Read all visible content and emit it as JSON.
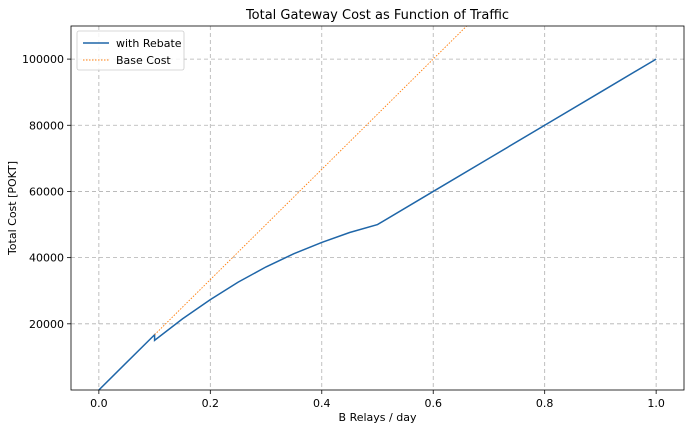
{
  "chart_data": {
    "type": "line",
    "title": "Total Gateway Cost as Function of Traffic",
    "xlabel": "B Relays / day",
    "ylabel": "Total Cost [POKT]",
    "xlim": [
      -0.05,
      1.05
    ],
    "ylim": [
      0,
      110000
    ],
    "xticks": [
      0.0,
      0.2,
      0.4,
      0.6,
      0.8,
      1.0
    ],
    "xtick_labels": [
      "0.0",
      "0.2",
      "0.4",
      "0.6",
      "0.8",
      "1.0"
    ],
    "yticks": [
      20000,
      40000,
      60000,
      80000,
      100000
    ],
    "ytick_labels": [
      "20000",
      "40000",
      "60000",
      "80000",
      "100000"
    ],
    "grid": true,
    "legend_position": "top-left",
    "series": [
      {
        "name": "with Rebate",
        "color": "#1f66a8",
        "style": "solid",
        "x": [
          0.0,
          0.1,
          0.1,
          0.15,
          0.2,
          0.25,
          0.3,
          0.35,
          0.4,
          0.45,
          0.5,
          0.6,
          0.7,
          0.8,
          0.9,
          1.0
        ],
        "y": [
          0,
          16700,
          15000,
          21500,
          27300,
          32600,
          37200,
          41200,
          44600,
          47600,
          50000,
          60000,
          70000,
          80000,
          90000,
          100000
        ]
      },
      {
        "name": "Base Cost",
        "color": "#ff7f0e",
        "style": "dotted",
        "x": [
          0.1,
          0.66
        ],
        "y": [
          16700,
          110000
        ]
      }
    ]
  }
}
